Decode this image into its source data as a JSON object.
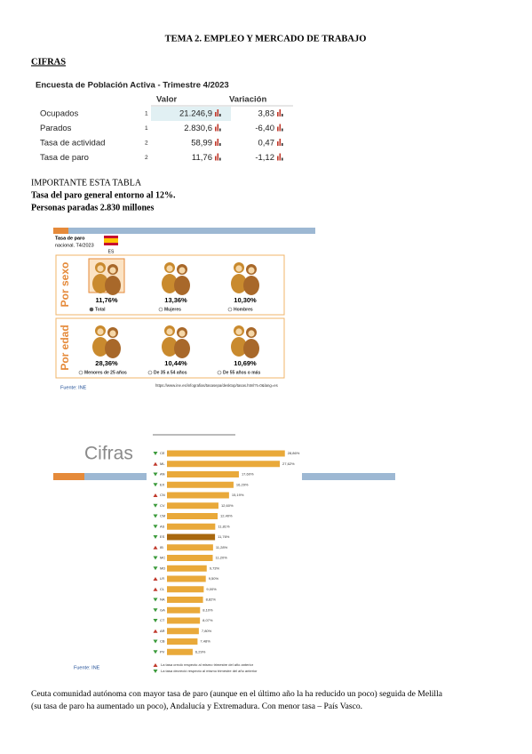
{
  "header": {
    "title": "TEMA 2. EMPLEO Y MERCADO DE TRABAJO",
    "section": "CIFRAS"
  },
  "table": {
    "title": "Encuesta de Población Activa - Trimestre 4/2023",
    "columns": [
      "Valor",
      "Variación"
    ],
    "rows": [
      [
        "Ocupados",
        "1",
        "21.246,9",
        "3,83"
      ],
      [
        "Parados",
        "1",
        "2.830,6",
        "-6,40"
      ],
      [
        "Tasa de actividad",
        "2",
        "58,99",
        "0,47"
      ],
      [
        "Tasa de paro",
        "2",
        "11,76",
        "-1,12"
      ]
    ]
  },
  "notes": [
    "IMPORTANTE ESTA TABLA",
    "Tasa del paro general entorno al 12%.",
    "Personas paradas 2.830 millones"
  ],
  "infographic": {
    "title_lines": [
      "Tasa de paro",
      "nacional. T4/2023"
    ],
    "country": "ES",
    "groups": [
      {
        "label": "Por sexo",
        "items": [
          {
            "value": "11,76%",
            "label": "Total"
          },
          {
            "value": "13,36%",
            "label": "Mujeres"
          },
          {
            "value": "10,30%",
            "label": "Hombres"
          }
        ]
      },
      {
        "label": "Por edad",
        "items": [
          {
            "value": "28,36%",
            "label": "Menores de 25 años"
          },
          {
            "value": "10,44%",
            "label": "De 35 a 54 años"
          },
          {
            "value": "10,69%",
            "label": "De 55 años o más"
          }
        ]
      }
    ],
    "source": "Fuente: INE",
    "url": "https://www.ine.es/infografias/tasasepa/desktop/tasas.html?t=0&lang=es"
  },
  "chart_data": {
    "type": "bar",
    "title": "Cifras",
    "categories": [
      "CE",
      "ML",
      "AN",
      "EX",
      "CN",
      "CV",
      "CM",
      "AS",
      "ES",
      "IB",
      "MC",
      "MD",
      "LR",
      "CL",
      "NA",
      "GA",
      "CT",
      "AR",
      "CB",
      "PV"
    ],
    "values": [
      28.86,
      27.62,
      17.6,
      16.29,
      15.19,
      12.6,
      12.4,
      11.81,
      11.76,
      11.28,
      11.2,
      9.73,
      9.5,
      9.0,
      8.82,
      8.1,
      8.07,
      7.8,
      7.48,
      6.29
    ],
    "value_labels": [
      "28,86%",
      "27,62%",
      "17,60%",
      "16,29%",
      "15,19%",
      "12,60%",
      "12,40%",
      "11,81%",
      "11,76%",
      "11,28%",
      "11,20%",
      "9,73%",
      "9,50%",
      "9,00%",
      "8,82%",
      "8,10%",
      "8,07%",
      "7,80%",
      "7,48%",
      "6,29%"
    ],
    "trend": [
      "down",
      "up",
      "down",
      "down",
      "up",
      "down",
      "down",
      "down",
      "down",
      "up",
      "down",
      "down",
      "up",
      "up",
      "down",
      "down",
      "down",
      "up",
      "down",
      "down"
    ],
    "color": "#e9a93a",
    "highlight_color": "#a8680f",
    "highlight": "ES",
    "legend": [
      "La tasa creció respecto al mismo trimestre del año anterior",
      "La tasa decreció respecto al mismo trimestre del año anterior"
    ],
    "source": "Fuente: INE"
  },
  "paragraph": [
    "Ceuta comunidad autónoma con mayor tasa de paro (aunque en el último año la ha reducido un poco) seguida de Melilla",
    "(su tasa de paro ha aumentado un poco), Andalucía y Extremadura. Con menor tasa – País Vasco."
  ]
}
